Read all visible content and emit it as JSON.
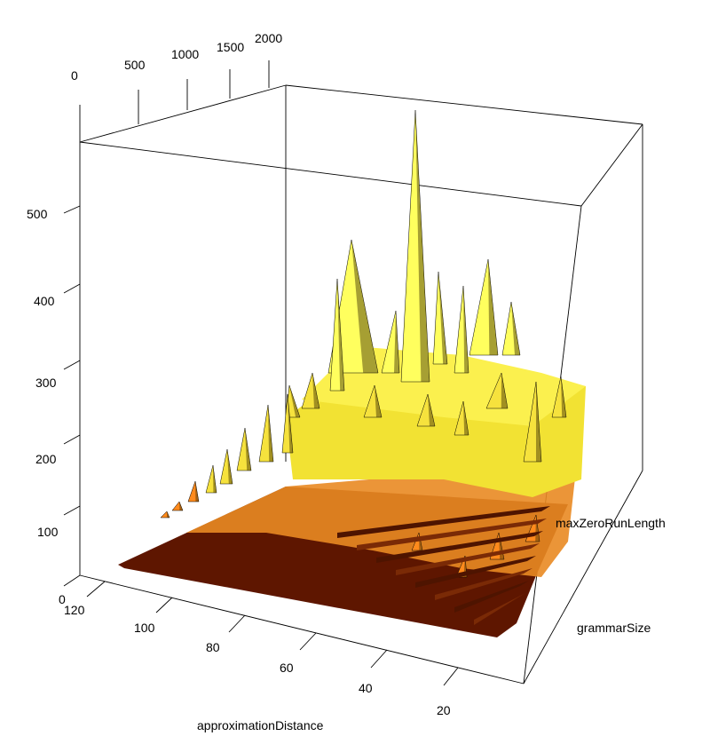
{
  "chart_data": {
    "type": "surface",
    "title": "",
    "xlabel": "approximationDistance",
    "ylabel": "grammarSize",
    "zlabel": "maxZeroRunLength",
    "axes": {
      "x": {
        "name": "approximationDistance",
        "ticks": [
          "120",
          "100",
          "80",
          "60",
          "40",
          "20"
        ],
        "range": [
          0,
          125
        ]
      },
      "y": {
        "name": "grammarSize",
        "ticks": [
          "0",
          "500",
          "1000",
          "1500",
          "2000"
        ],
        "range": [
          0,
          2100
        ]
      },
      "z": {
        "name": "maxZeroRunLength",
        "ticks": [
          "0",
          "100",
          "200",
          "300",
          "400",
          "500"
        ],
        "range": [
          0,
          600
        ]
      }
    },
    "colors": {
      "low": "#5e1600",
      "mid": "#ff8a1c",
      "high": "#ffff5e",
      "edge": "#000000"
    },
    "series": [
      {
        "approximationDistance": [
          120,
          100,
          80,
          60,
          40,
          20,
          10
        ],
        "max_grammarSize": 2000,
        "peak_maxZeroRunLength": 560
      }
    ],
    "grid": false,
    "box": true
  }
}
